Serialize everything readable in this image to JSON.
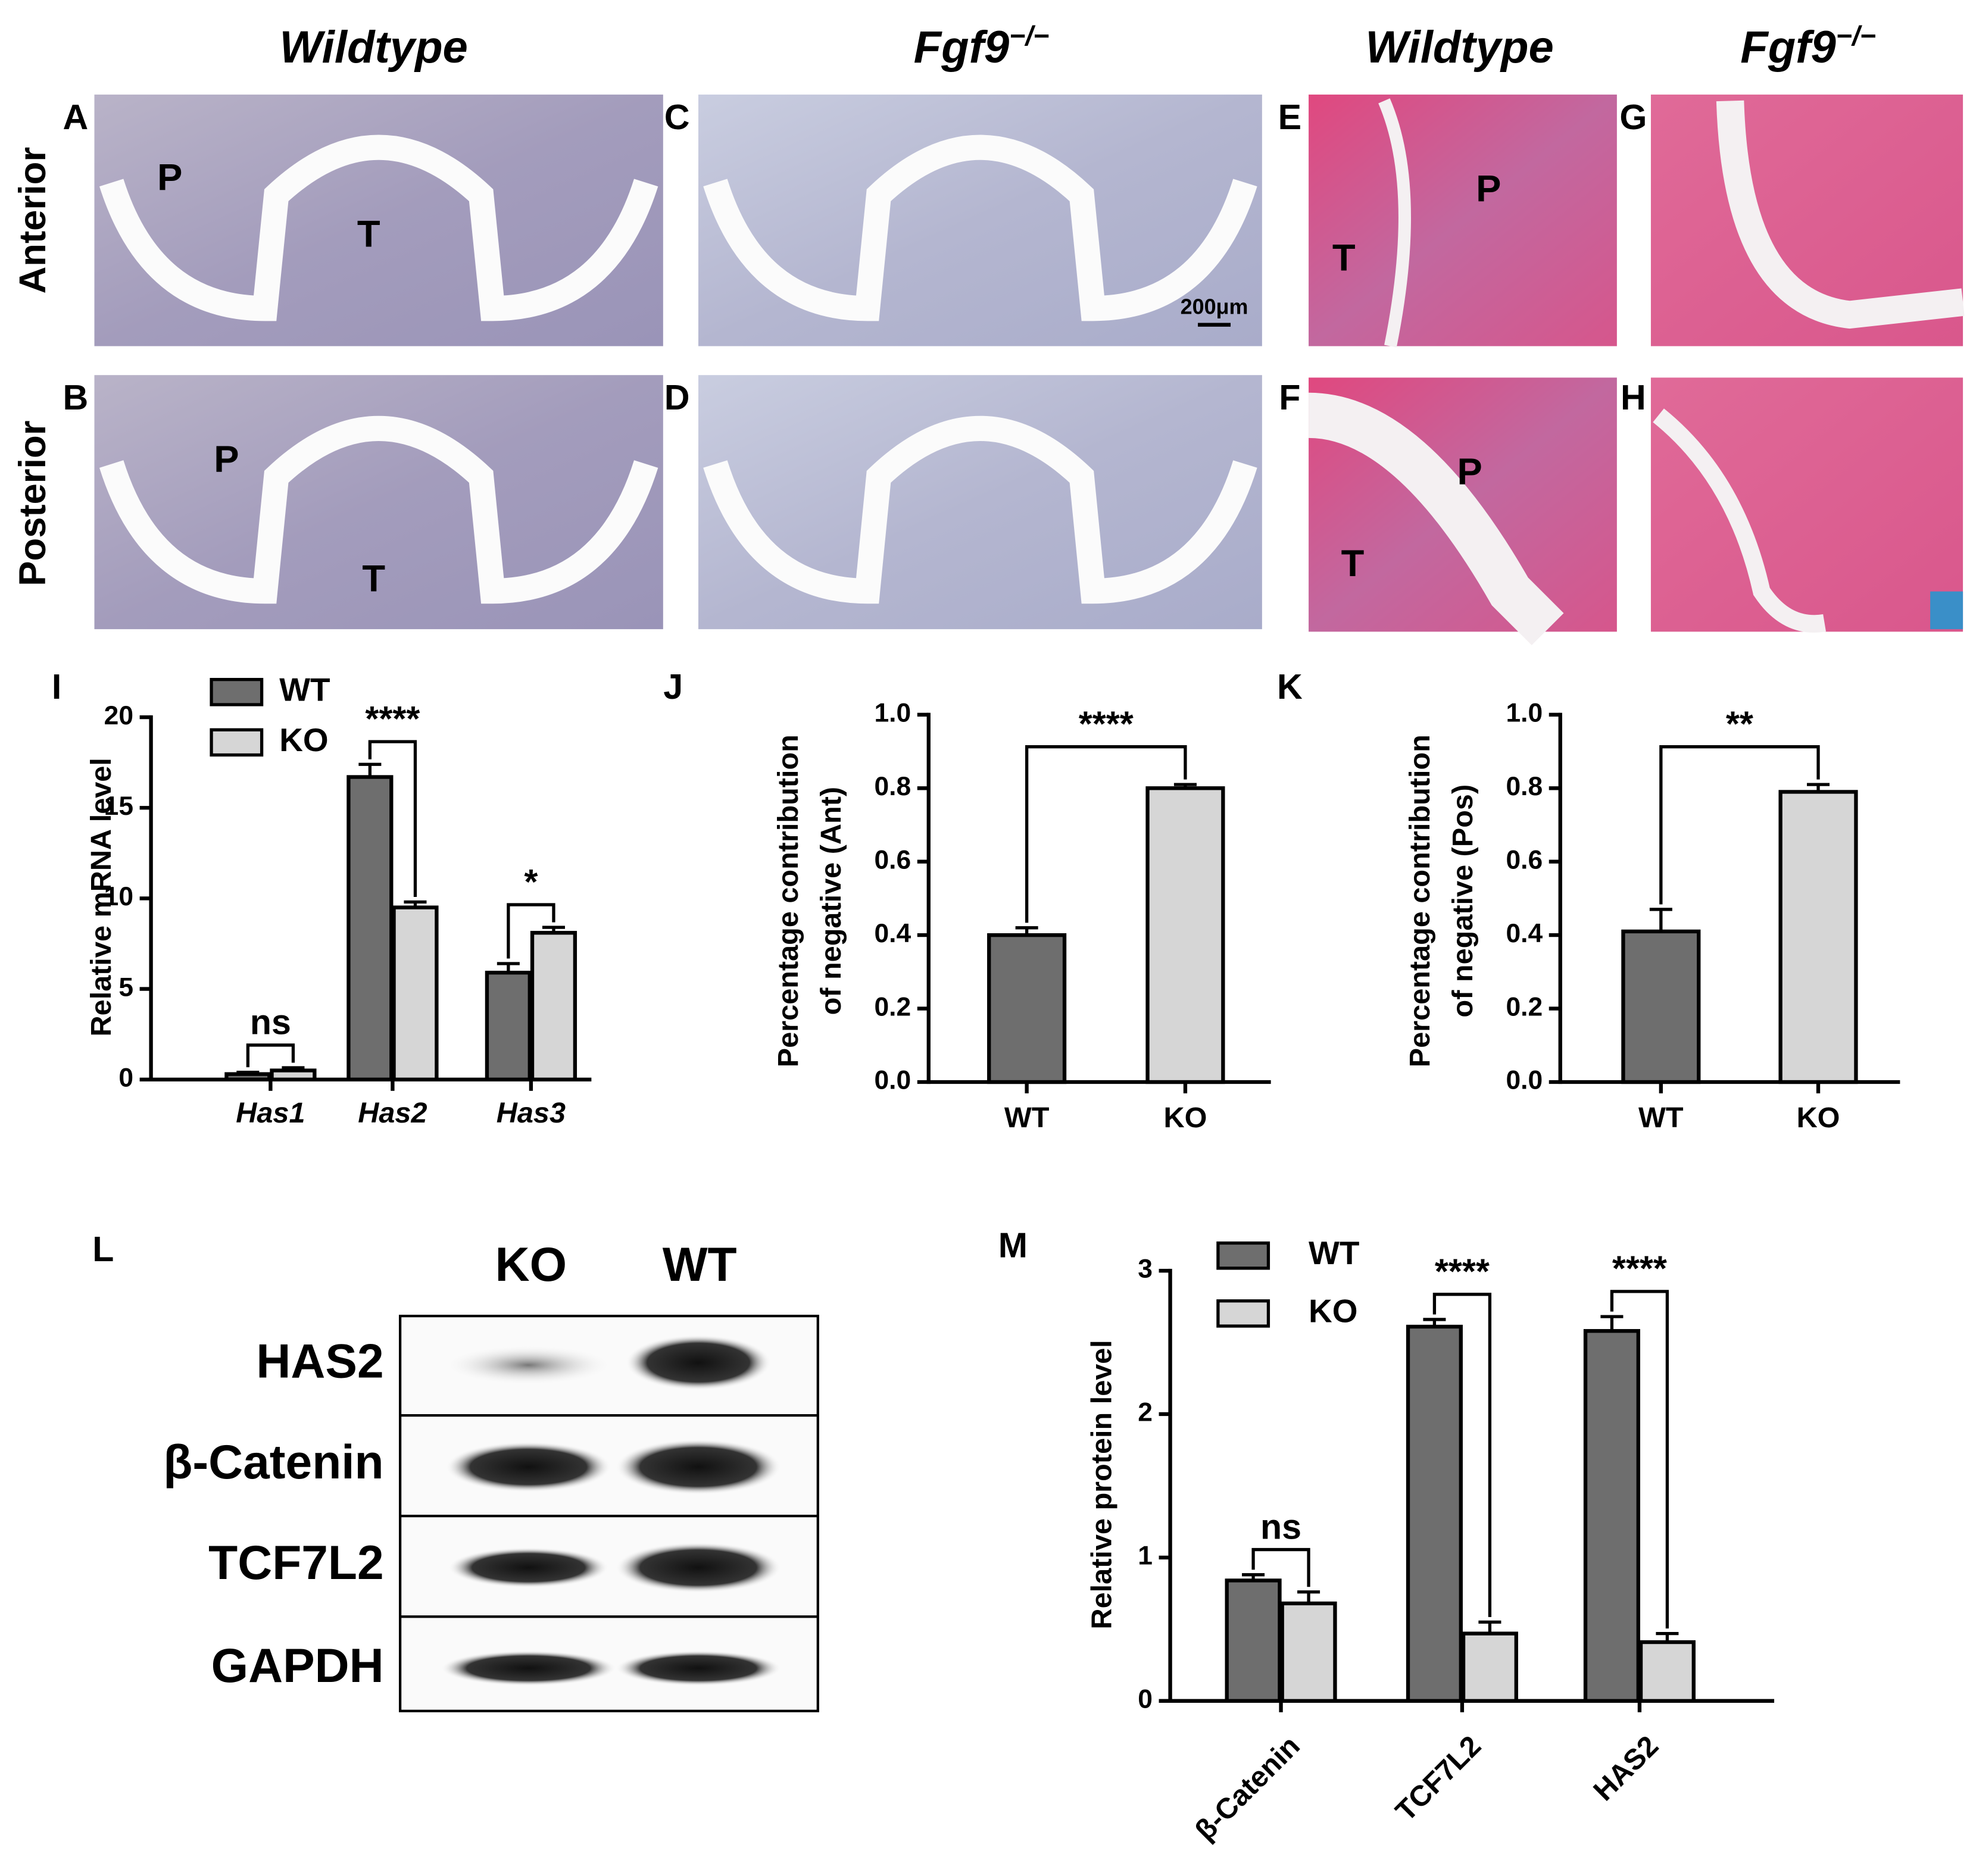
{
  "headers": [
    {
      "text": "Wildtype"
    },
    {
      "gene": "Fgf9",
      "genotype": "−/−"
    },
    {
      "text": "Wildtype"
    },
    {
      "gene": "Fgf9",
      "genotype": "−/−"
    }
  ],
  "row_labels": [
    "Anterior",
    "Posterior"
  ],
  "micrographs": [
    {
      "label": "A",
      "regions": [
        "P",
        "T"
      ]
    },
    {
      "label": "B",
      "regions": [
        "P",
        "T"
      ]
    },
    {
      "label": "C",
      "scale_bar": "200μm"
    },
    {
      "label": "D"
    },
    {
      "label": "E",
      "regions": [
        "T",
        "P"
      ]
    },
    {
      "label": "F",
      "regions": [
        "P",
        "T"
      ]
    },
    {
      "label": "G"
    },
    {
      "label": "H"
    }
  ],
  "western_blot": {
    "label": "L",
    "lanes": [
      "KO",
      "WT"
    ],
    "proteins": [
      "HAS2",
      "β-Catenin",
      "TCF7L2",
      "GAPDH"
    ]
  },
  "chart_data": [
    {
      "type": "bar",
      "panel_label": "I",
      "y_label": "Relative mRNA level",
      "categories": [
        "Has1",
        "Has2",
        "Has3"
      ],
      "series": [
        {
          "name": "WT",
          "color": "#6e6e6e",
          "values": [
            0.3,
            16.7,
            5.9
          ],
          "errors": [
            0.1,
            0.7,
            0.5
          ]
        },
        {
          "name": "KO",
          "color": "#d6d6d6",
          "values": [
            0.5,
            9.5,
            8.1
          ],
          "errors": [
            0.15,
            0.3,
            0.3
          ]
        }
      ],
      "significance": [
        "ns",
        "****",
        "*"
      ],
      "ylim": [
        0,
        20
      ],
      "yticks": [
        0,
        5,
        10,
        15,
        20
      ]
    },
    {
      "type": "bar",
      "panel_label": "J",
      "y_label": [
        "Percentage contribution",
        "of negative (Ant)"
      ],
      "categories": [
        "WT",
        "KO"
      ],
      "values": [
        0.4,
        0.8
      ],
      "errors": [
        0.02,
        0.01
      ],
      "colors": [
        "#6e6e6e",
        "#d6d6d6"
      ],
      "significance": "****",
      "ylim": [
        0,
        1
      ],
      "yticks": [
        {
          "value": 0,
          "label": "0.0"
        },
        0.2,
        0.4,
        0.6,
        0.8,
        {
          "value": 1,
          "label": "1.0"
        }
      ]
    },
    {
      "type": "bar",
      "panel_label": "K",
      "y_label": [
        "Percentage contribution",
        "of negative (Pos)"
      ],
      "categories": [
        "WT",
        "KO"
      ],
      "values": [
        0.41,
        0.79
      ],
      "errors": [
        0.06,
        0.02
      ],
      "colors": [
        "#6e6e6e",
        "#d6d6d6"
      ],
      "significance": "**",
      "ylim": [
        0,
        1
      ],
      "yticks": [
        {
          "value": 0,
          "label": "0.0"
        },
        0.2,
        0.4,
        0.6,
        0.8,
        {
          "value": 1,
          "label": "1.0"
        }
      ]
    },
    {
      "type": "bar",
      "panel_label": "M",
      "y_label": "Relative protein level",
      "categories": [
        "β-Catenin",
        "TCF7L2",
        "HAS2"
      ],
      "series": [
        {
          "name": "WT",
          "color": "#6e6e6e",
          "values": [
            0.84,
            2.61,
            2.58
          ],
          "errors": [
            0.04,
            0.05,
            0.1
          ]
        },
        {
          "name": "KO",
          "color": "#d6d6d6",
          "values": [
            0.68,
            0.47,
            0.41
          ],
          "errors": [
            0.08,
            0.08,
            0.06
          ]
        }
      ],
      "significance": [
        "ns",
        "****",
        "****"
      ],
      "ylim": [
        0,
        3
      ],
      "yticks": [
        0,
        1,
        2,
        3
      ]
    }
  ]
}
